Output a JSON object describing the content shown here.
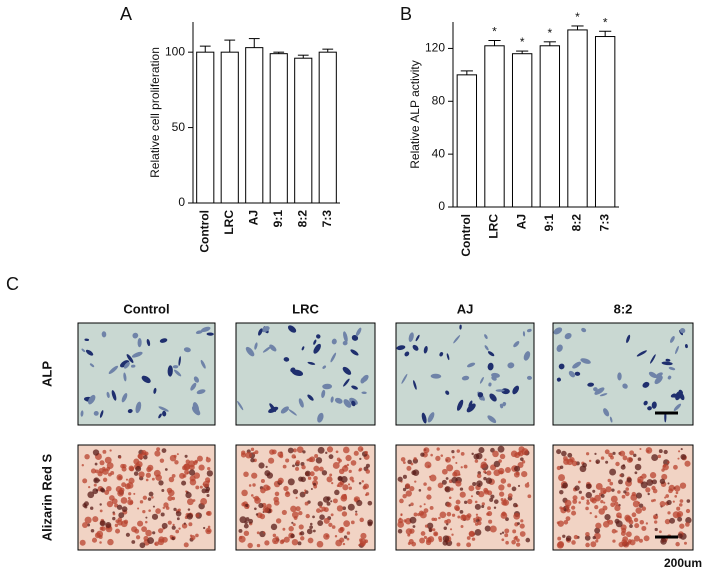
{
  "chart_data": [
    {
      "type": "bar",
      "panel": "A",
      "y_label": "Relative cell proliferation",
      "categories": [
        "Control",
        "LRC",
        "AJ",
        "9:1",
        "8:2",
        "7:3"
      ],
      "values": [
        100,
        100,
        103,
        99,
        96,
        100
      ],
      "errors": [
        4,
        8,
        6,
        1,
        2,
        2
      ],
      "ylim": [
        0,
        120
      ],
      "yticks": [
        0,
        50,
        100
      ],
      "color": "#ffffff"
    },
    {
      "type": "bar",
      "panel": "B",
      "y_label": "Relative ALP activity",
      "categories": [
        "Control",
        "LRC",
        "AJ",
        "9:1",
        "8:2",
        "7:3"
      ],
      "values": [
        100,
        122,
        116,
        122,
        134,
        129
      ],
      "errors": [
        3,
        4,
        2,
        3,
        3,
        4
      ],
      "significance": [
        null,
        "*",
        "*",
        "*",
        "*",
        "*"
      ],
      "ylim": [
        0,
        140
      ],
      "yticks": [
        0,
        40,
        80,
        120
      ],
      "color": "#ffffff"
    }
  ],
  "panel_c": {
    "label": "C",
    "columns": [
      "Control",
      "LRC",
      "AJ",
      "8:2"
    ],
    "rows": [
      "ALP",
      "Alizarin Red S"
    ],
    "scale_bar": "200um"
  }
}
